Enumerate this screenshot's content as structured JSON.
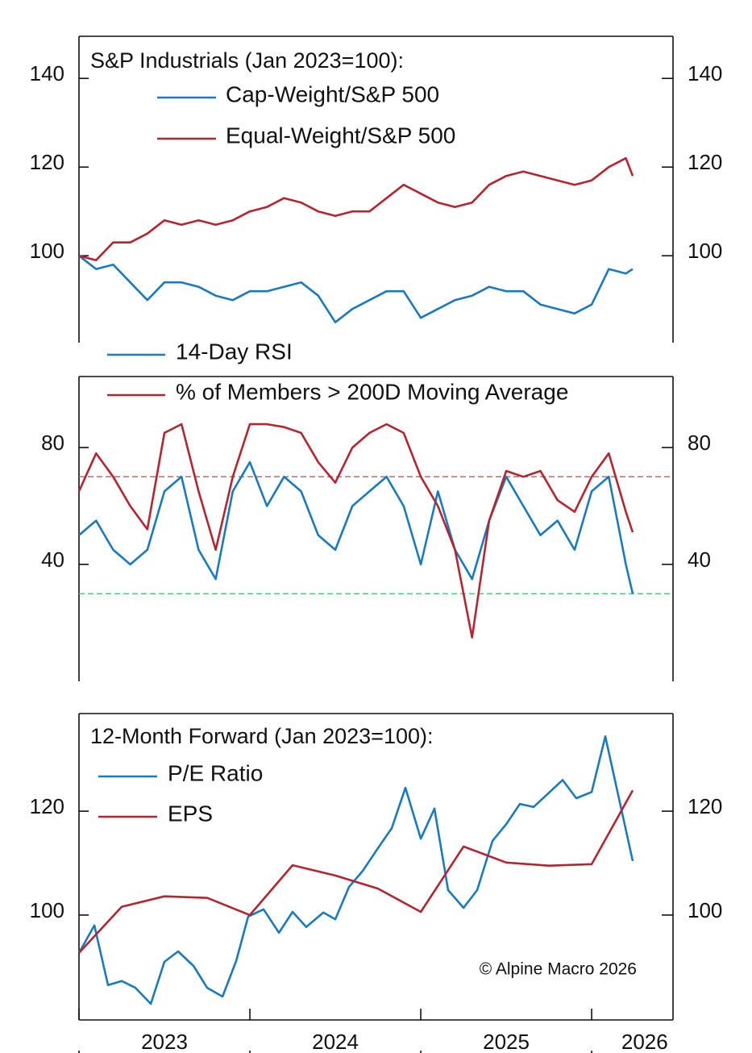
{
  "chart_data": [
    {
      "type": "line",
      "title": "S&P Industrials (Jan 2023=100):",
      "x": [
        2023.0,
        2023.1,
        2023.2,
        2023.3,
        2023.4,
        2023.5,
        2023.6,
        2023.7,
        2023.8,
        2023.9,
        2024.0,
        2024.1,
        2024.2,
        2024.3,
        2024.4,
        2024.5,
        2024.6,
        2024.7,
        2024.8,
        2024.9,
        2025.0,
        2025.1,
        2025.2,
        2025.3,
        2025.4,
        2025.5,
        2025.6,
        2025.7,
        2025.8,
        2025.9,
        2026.0,
        2026.1,
        2026.2,
        2026.24
      ],
      "series": [
        {
          "name": "Cap-Weight/S&P 500",
          "color": "#1a7abf",
          "values": [
            100,
            97,
            98,
            94,
            90,
            94,
            94,
            93,
            91,
            90,
            92,
            92,
            93,
            94,
            91,
            85,
            88,
            90,
            92,
            92,
            86,
            88,
            90,
            91,
            93,
            92,
            92,
            89,
            88,
            87,
            89,
            97,
            96,
            97
          ]
        },
        {
          "name": "Equal-Weight/S&P 500",
          "color": "#b5252f",
          "values": [
            100,
            99,
            103,
            103,
            105,
            108,
            107,
            108,
            107,
            108,
            110,
            111,
            113,
            112,
            110,
            109,
            110,
            110,
            113,
            116,
            114,
            112,
            111,
            112,
            116,
            118,
            119,
            118,
            117,
            116,
            117,
            120,
            122,
            118
          ]
        }
      ],
      "xlim": [
        2023.0,
        2026.476
      ],
      "ylim": [
        80.4,
        149.5
      ],
      "yticks": [
        100,
        120,
        140
      ]
    },
    {
      "type": "line",
      "x": [
        2023.0,
        2023.1,
        2023.2,
        2023.3,
        2023.4,
        2023.5,
        2023.6,
        2023.7,
        2023.8,
        2023.9,
        2024.0,
        2024.1,
        2024.2,
        2024.3,
        2024.4,
        2024.5,
        2024.6,
        2024.7,
        2024.8,
        2024.9,
        2025.0,
        2025.1,
        2025.2,
        2025.3,
        2025.4,
        2025.5,
        2025.6,
        2025.7,
        2025.8,
        2025.9,
        2026.0,
        2026.1,
        2026.2,
        2026.24
      ],
      "series": [
        {
          "name": "14-Day RSI",
          "color": "#1a7abf",
          "values": [
            50,
            55,
            45,
            40,
            45,
            65,
            70,
            45,
            35,
            65,
            75,
            60,
            70,
            65,
            50,
            45,
            60,
            65,
            70,
            60,
            40,
            65,
            45,
            35,
            55,
            70,
            60,
            50,
            55,
            45,
            65,
            70,
            40,
            30
          ]
        },
        {
          "name": "% of Members > 200D Moving Average",
          "color": "#b5252f",
          "values": [
            65,
            78,
            70,
            60,
            52,
            85,
            88,
            65,
            45,
            70,
            88,
            88,
            87,
            85,
            75,
            68,
            80,
            85,
            88,
            85,
            70,
            60,
            45,
            15,
            55,
            72,
            70,
            72,
            62,
            58,
            70,
            78,
            58,
            51
          ]
        }
      ],
      "hlines": [
        {
          "value": 70,
          "color": "#e05050"
        },
        {
          "value": 30,
          "color": "#4cc870"
        }
      ],
      "xlim": [
        2023.0,
        2026.476
      ],
      "ylim": [
        0,
        104.3
      ],
      "yticks": [
        40,
        80
      ]
    },
    {
      "type": "line",
      "title": "12-Month Forward (Jan 2023=100):",
      "series": [
        {
          "name": "P/E Ratio",
          "color": "#1a7abf",
          "x": [
            2023.0,
            2023.09,
            2023.17,
            2023.25,
            2023.33,
            2023.42,
            2023.5,
            2023.58,
            2023.67,
            2023.75,
            2023.84,
            2023.92,
            2023.99,
            2024.08,
            2024.17,
            2024.25,
            2024.33,
            2024.43,
            2024.5,
            2024.58,
            2024.66,
            2024.75,
            2024.83,
            2024.91,
            2025.0,
            2025.08,
            2025.16,
            2025.25,
            2025.33,
            2025.42,
            2025.5,
            2025.58,
            2025.66,
            2025.83,
            2025.91,
            2026.0,
            2026.08,
            2026.24
          ],
          "values": [
            92.7,
            98.0,
            86.5,
            87.3,
            86.0,
            82.9,
            91.0,
            93.0,
            90.2,
            86.0,
            84.3,
            91.2,
            99.7,
            101.1,
            96.6,
            100.6,
            97.7,
            100.5,
            99.2,
            105.4,
            108.5,
            112.9,
            116.7,
            124.5,
            114.7,
            120.5,
            104.8,
            101.4,
            104.8,
            114.3,
            117.5,
            121.4,
            120.8,
            126.0,
            122.5,
            123.7,
            134.4,
            110.4
          ]
        },
        {
          "name": "EPS",
          "color": "#b5252f",
          "x": [
            2023.0,
            2023.25,
            2023.5,
            2023.75,
            2024.0,
            2024.25,
            2024.5,
            2024.75,
            2025.0,
            2025.25,
            2025.5,
            2025.75,
            2026.0,
            2026.24
          ],
          "values": [
            92.7,
            101.6,
            103.6,
            103.3,
            100.0,
            109.6,
            107.6,
            105.1,
            100.6,
            113.2,
            110.1,
            109.5,
            109.8,
            124.0
          ]
        }
      ],
      "annotation": "© Alpine Macro 2026",
      "xlim": [
        2023.0,
        2026.476
      ],
      "ylim": [
        79.8,
        138.8
      ],
      "yticks": [
        100,
        120
      ],
      "xticks": [
        2023,
        2024,
        2025,
        2026
      ],
      "xtick_labels": [
        {
          "value": 2023.5,
          "label": "2023"
        },
        {
          "value": 2024.5,
          "label": "2024"
        },
        {
          "value": 2025.5,
          "label": "2025"
        },
        {
          "value": 2026.31,
          "label": "2026"
        }
      ]
    }
  ]
}
